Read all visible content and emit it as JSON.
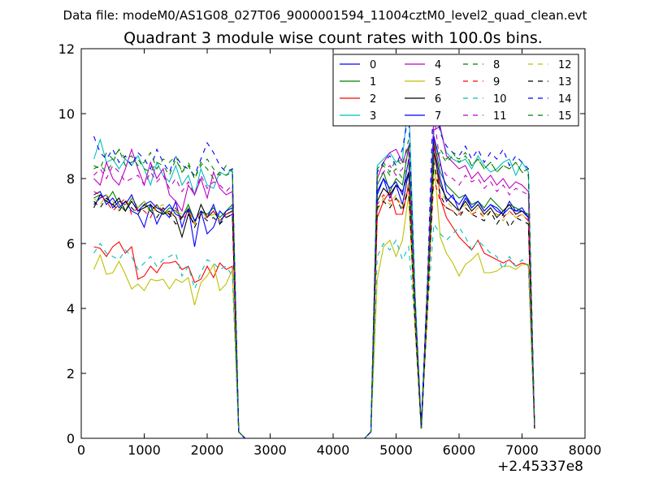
{
  "suptitle": "Data file: modeM0/AS1G08_027T06_9000001594_11004cztM0_level2_quad_clean.evt",
  "chart_data": {
    "type": "line",
    "title": "Quadrant 3 module wise count rates with 100.0s bins.",
    "xlabel": "",
    "ylabel": "",
    "x_offset_label": "+2.45337e8",
    "xlim": [
      0,
      8000
    ],
    "ylim": [
      0,
      12
    ],
    "xticks": [
      0,
      1000,
      2000,
      3000,
      4000,
      5000,
      6000,
      7000,
      8000
    ],
    "yticks": [
      0,
      2,
      4,
      6,
      8,
      10,
      12
    ],
    "grid": false,
    "legend_position": "top-right",
    "legend_columns": 4,
    "x": [
      200,
      300,
      400,
      500,
      600,
      700,
      800,
      900,
      1000,
      1100,
      1200,
      1300,
      1400,
      1500,
      1600,
      1700,
      1800,
      1900,
      2000,
      2100,
      2200,
      2300,
      2400,
      2500,
      2600,
      4500,
      4600,
      4700,
      4800,
      4900,
      5000,
      5100,
      5200,
      5300,
      5400,
      5500,
      5600,
      5700,
      5800,
      5900,
      6000,
      6100,
      6200,
      6300,
      6400,
      6500,
      6600,
      6700,
      6800,
      6900,
      7000,
      7100,
      7200
    ],
    "series": [
      {
        "name": "0",
        "color": "#0000ff",
        "dash": "solid",
        "values": [
          7.5,
          7.6,
          7.2,
          7.4,
          7.1,
          7.3,
          7.0,
          6.9,
          6.5,
          7.2,
          6.6,
          7.0,
          6.8,
          7.3,
          6.5,
          7.1,
          5.9,
          7.0,
          6.3,
          6.5,
          7.0,
          6.8,
          6.9,
          0.2,
          0.0,
          0.0,
          0.2,
          7.5,
          8.0,
          7.4,
          7.8,
          7.2,
          8.2,
          4.0,
          0.3,
          4.5,
          9.0,
          8.0,
          7.3,
          7.5,
          7.0,
          7.4,
          7.1,
          7.3,
          7.0,
          7.2,
          7.1,
          6.9,
          7.3,
          7.0,
          7.1,
          6.8,
          0.3
        ]
      },
      {
        "name": "1",
        "color": "#008000",
        "dash": "solid",
        "values": [
          7.4,
          7.5,
          7.3,
          7.6,
          7.2,
          7.0,
          7.4,
          7.1,
          7.3,
          7.0,
          7.2,
          6.9,
          7.1,
          7.0,
          6.8,
          7.2,
          6.7,
          7.0,
          6.9,
          7.1,
          6.8,
          7.0,
          7.2,
          0.2,
          0.0,
          0.0,
          0.2,
          7.8,
          8.2,
          7.6,
          8.0,
          7.8,
          9.0,
          4.0,
          0.3,
          4.8,
          9.2,
          8.2,
          7.8,
          7.6,
          7.4,
          7.5,
          7.2,
          7.3,
          7.1,
          7.4,
          7.2,
          7.0,
          7.2,
          7.1,
          7.0,
          6.9,
          0.3
        ]
      },
      {
        "name": "2",
        "color": "#ff0000",
        "dash": "solid",
        "values": [
          5.9,
          5.85,
          5.6,
          5.9,
          6.05,
          5.7,
          5.9,
          4.9,
          5.0,
          5.3,
          5.1,
          5.4,
          5.4,
          5.45,
          5.2,
          5.3,
          4.8,
          4.9,
          5.3,
          4.95,
          5.4,
          5.2,
          5.3,
          0.2,
          0.0,
          0.0,
          0.2,
          6.8,
          7.3,
          7.6,
          6.9,
          6.9,
          7.8,
          3.5,
          0.3,
          4.2,
          9.2,
          7.4,
          6.8,
          6.5,
          6.2,
          6.0,
          5.8,
          6.1,
          5.7,
          5.6,
          5.5,
          5.4,
          5.5,
          5.3,
          5.4,
          5.35,
          0.3
        ]
      },
      {
        "name": "3",
        "color": "#00bfbf",
        "dash": "solid",
        "values": [
          8.6,
          9.2,
          8.5,
          8.6,
          8.3,
          8.6,
          8.4,
          8.7,
          8.3,
          7.8,
          8.5,
          8.1,
          7.9,
          8.4,
          7.8,
          8.1,
          7.5,
          8.3,
          7.8,
          7.7,
          8.2,
          8.1,
          8.3,
          0.2,
          0.0,
          0.0,
          0.2,
          8.4,
          8.6,
          8.8,
          8.5,
          8.6,
          10.5,
          4.5,
          0.4,
          5.0,
          10.0,
          9.5,
          8.8,
          8.6,
          8.5,
          8.6,
          8.3,
          8.7,
          8.4,
          8.2,
          8.3,
          8.5,
          8.6,
          8.1,
          8.5,
          8.2,
          0.3
        ]
      },
      {
        "name": "4",
        "color": "#bf00bf",
        "dash": "solid",
        "values": [
          8.0,
          7.8,
          8.5,
          8.0,
          7.8,
          8.3,
          8.9,
          8.3,
          7.8,
          8.5,
          8.0,
          8.3,
          7.5,
          7.3,
          7.0,
          7.8,
          7.5,
          8.0,
          7.4,
          8.2,
          7.7,
          7.5,
          7.6,
          0.2,
          0.0,
          0.0,
          0.2,
          8.0,
          8.5,
          8.8,
          8.9,
          8.5,
          9.0,
          4.2,
          0.3,
          4.8,
          9.5,
          9.6,
          8.7,
          8.5,
          8.3,
          8.4,
          8.0,
          8.2,
          7.9,
          8.1,
          7.8,
          8.0,
          7.7,
          7.9,
          7.8,
          7.6,
          0.3
        ]
      },
      {
        "name": "5",
        "color": "#bfbf00",
        "dash": "solid",
        "values": [
          5.2,
          5.65,
          5.05,
          5.1,
          5.45,
          5.05,
          4.6,
          4.75,
          4.55,
          4.9,
          4.85,
          4.9,
          4.6,
          4.9,
          4.8,
          4.95,
          4.1,
          4.8,
          5.0,
          5.35,
          4.55,
          4.75,
          5.2,
          0.2,
          0.0,
          0.0,
          0.2,
          4.9,
          5.9,
          6.1,
          5.6,
          6.1,
          7.5,
          3.4,
          0.3,
          3.9,
          8.6,
          6.2,
          5.7,
          5.4,
          5.0,
          5.35,
          5.5,
          5.7,
          5.1,
          5.1,
          5.15,
          5.3,
          5.3,
          5.2,
          5.35,
          5.35,
          0.3
        ]
      },
      {
        "name": "6",
        "color": "#000000",
        "dash": "solid",
        "values": [
          7.1,
          7.5,
          7.3,
          7.2,
          7.4,
          7.0,
          7.3,
          7.0,
          7.1,
          7.2,
          7.0,
          6.9,
          7.0,
          6.8,
          6.2,
          6.9,
          6.6,
          7.2,
          6.8,
          7.0,
          6.7,
          6.9,
          7.0,
          0.2,
          0.0,
          0.0,
          0.2,
          7.3,
          7.7,
          7.5,
          7.8,
          7.6,
          8.2,
          3.8,
          0.3,
          4.3,
          8.8,
          7.8,
          7.4,
          7.2,
          7.0,
          7.3,
          7.0,
          7.2,
          6.9,
          7.1,
          6.8,
          7.0,
          7.2,
          6.9,
          7.0,
          6.8,
          0.3
        ]
      },
      {
        "name": "7",
        "color": "#0000ff",
        "dash": "solid",
        "values": [
          7.2,
          7.4,
          7.5,
          7.1,
          7.3,
          7.2,
          7.5,
          7.0,
          7.2,
          7.3,
          7.1,
          7.0,
          7.2,
          6.9,
          6.8,
          7.1,
          6.7,
          7.0,
          6.8,
          7.2,
          6.6,
          7.0,
          7.1,
          0.2,
          0.0,
          0.0,
          0.2,
          7.6,
          8.0,
          7.7,
          7.9,
          7.5,
          8.6,
          3.9,
          0.3,
          4.4,
          9.3,
          8.5,
          7.6,
          7.4,
          7.2,
          7.5,
          7.1,
          7.3,
          7.0,
          7.2,
          7.0,
          6.9,
          7.1,
          7.0,
          7.0,
          6.8,
          0.3
        ]
      },
      {
        "name": "8",
        "color": "#008000",
        "dash": "dashed",
        "values": [
          8.4,
          8.3,
          8.8,
          8.6,
          8.9,
          8.4,
          8.5,
          8.6,
          8.3,
          8.2,
          8.5,
          8.4,
          8.1,
          8.6,
          8.2,
          8.4,
          8.0,
          8.5,
          8.3,
          8.0,
          8.2,
          8.1,
          8.2,
          0.2,
          0.0,
          0.0,
          0.2,
          8.2,
          8.4,
          8.1,
          8.3,
          8.0,
          8.5,
          4.0,
          0.3,
          4.6,
          8.7,
          8.8,
          8.5,
          8.7,
          8.6,
          8.8,
          8.4,
          8.6,
          8.3,
          8.5,
          8.2,
          8.4,
          8.3,
          8.5,
          8.2,
          8.3,
          0.3
        ]
      },
      {
        "name": "9",
        "color": "#ff0000",
        "dash": "dashed",
        "values": [
          7.6,
          7.5,
          7.3,
          7.0,
          7.2,
          7.4,
          6.9,
          7.1,
          7.0,
          6.8,
          7.2,
          7.0,
          6.9,
          7.1,
          6.7,
          7.0,
          6.6,
          6.9,
          6.8,
          7.0,
          6.7,
          6.9,
          7.0,
          0.2,
          0.0,
          0.0,
          0.2,
          7.2,
          7.5,
          7.3,
          7.4,
          7.1,
          7.8,
          3.7,
          0.3,
          4.2,
          8.0,
          7.3,
          7.1,
          7.0,
          6.9,
          7.1,
          6.9,
          7.0,
          6.8,
          7.0,
          6.9,
          6.8,
          7.0,
          6.8,
          6.9,
          6.7,
          0.3
        ]
      },
      {
        "name": "10",
        "color": "#00bfbf",
        "dash": "dashed",
        "values": [
          5.7,
          6.0,
          5.7,
          5.6,
          5.5,
          5.8,
          5.6,
          5.2,
          5.4,
          5.6,
          5.3,
          5.5,
          5.6,
          5.7,
          5.0,
          5.3,
          4.6,
          5.1,
          5.5,
          5.4,
          5.2,
          5.3,
          5.0,
          0.2,
          0.0,
          0.0,
          0.2,
          5.6,
          6.0,
          5.8,
          6.1,
          5.5,
          5.9,
          3.5,
          0.3,
          4.0,
          6.6,
          6.3,
          6.1,
          6.3,
          6.5,
          6.2,
          5.8,
          6.1,
          5.9,
          5.7,
          5.6,
          5.2,
          5.6,
          5.3,
          5.5,
          5.3,
          0.3
        ]
      },
      {
        "name": "11",
        "color": "#bf00bf",
        "dash": "dashed",
        "values": [
          8.1,
          8.3,
          8.0,
          8.4,
          8.2,
          7.9,
          8.0,
          8.1,
          7.8,
          8.2,
          7.9,
          8.1,
          7.7,
          8.0,
          7.6,
          7.9,
          7.5,
          8.1,
          7.7,
          7.9,
          7.8,
          7.6,
          7.8,
          0.2,
          0.0,
          0.0,
          0.2,
          8.0,
          8.2,
          8.4,
          8.1,
          8.3,
          8.8,
          4.1,
          0.3,
          4.7,
          10.0,
          8.4,
          8.1,
          8.0,
          7.8,
          8.1,
          7.9,
          8.0,
          7.7,
          7.9,
          7.6,
          7.8,
          7.5,
          7.7,
          7.6,
          7.5,
          0.3
        ]
      },
      {
        "name": "12",
        "color": "#bfbf00",
        "dash": "dashed",
        "values": [
          7.4,
          7.2,
          7.5,
          7.3,
          7.0,
          7.2,
          7.4,
          7.1,
          7.3,
          6.9,
          7.1,
          7.2,
          6.8,
          7.0,
          6.9,
          7.1,
          6.6,
          7.0,
          6.8,
          6.9,
          6.7,
          6.8,
          6.9,
          0.2,
          0.0,
          0.0,
          0.2,
          7.0,
          7.4,
          7.2,
          7.5,
          7.1,
          7.9,
          3.7,
          0.3,
          4.2,
          8.2,
          7.6,
          7.3,
          7.1,
          7.0,
          7.2,
          6.9,
          7.1,
          6.8,
          7.0,
          6.9,
          6.7,
          7.0,
          6.8,
          6.9,
          6.7,
          0.3
        ]
      },
      {
        "name": "13",
        "color": "#000000",
        "dash": "dashed",
        "values": [
          7.3,
          7.1,
          7.4,
          7.2,
          7.0,
          7.3,
          7.1,
          6.9,
          7.2,
          7.0,
          6.8,
          7.1,
          6.9,
          6.6,
          6.8,
          7.0,
          6.5,
          6.9,
          6.7,
          6.8,
          6.6,
          6.8,
          6.9,
          0.2,
          0.0,
          0.0,
          0.2,
          7.1,
          7.3,
          7.1,
          7.4,
          7.0,
          7.7,
          3.6,
          0.3,
          4.1,
          8.5,
          7.5,
          7.1,
          7.0,
          6.8,
          7.1,
          6.9,
          6.8,
          6.7,
          7.0,
          6.6,
          6.9,
          6.5,
          6.8,
          6.7,
          6.6,
          0.3
        ]
      },
      {
        "name": "14",
        "color": "#0000ff",
        "dash": "dashed",
        "values": [
          9.3,
          8.8,
          8.6,
          8.9,
          8.5,
          8.7,
          8.4,
          8.8,
          8.6,
          8.3,
          8.9,
          8.5,
          8.2,
          8.7,
          8.4,
          8.3,
          8.1,
          8.6,
          9.1,
          8.8,
          8.4,
          8.2,
          8.3,
          0.2,
          0.0,
          0.0,
          0.2,
          8.2,
          8.5,
          8.7,
          8.4,
          8.9,
          10.0,
          4.3,
          0.4,
          5.0,
          11.0,
          9.4,
          9.0,
          8.8,
          8.7,
          9.0,
          8.6,
          8.9,
          8.5,
          8.8,
          8.6,
          8.9,
          8.4,
          8.7,
          8.5,
          8.3,
          0.3
        ]
      },
      {
        "name": "15",
        "color": "#008000",
        "dash": "dashed",
        "values": [
          8.3,
          8.4,
          8.2,
          8.5,
          8.9,
          8.6,
          8.7,
          8.4,
          8.5,
          8.8,
          8.3,
          8.6,
          8.5,
          8.7,
          8.2,
          8.5,
          8.0,
          8.4,
          8.6,
          8.3,
          8.1,
          8.4,
          8.2,
          0.2,
          0.0,
          0.0,
          0.2,
          8.3,
          8.5,
          8.2,
          8.6,
          8.4,
          9.2,
          4.1,
          0.3,
          4.7,
          9.0,
          8.9,
          8.6,
          8.8,
          8.5,
          8.7,
          8.4,
          8.6,
          8.3,
          8.5,
          8.2,
          8.4,
          8.3,
          8.5,
          8.2,
          8.1,
          0.3
        ]
      }
    ]
  }
}
